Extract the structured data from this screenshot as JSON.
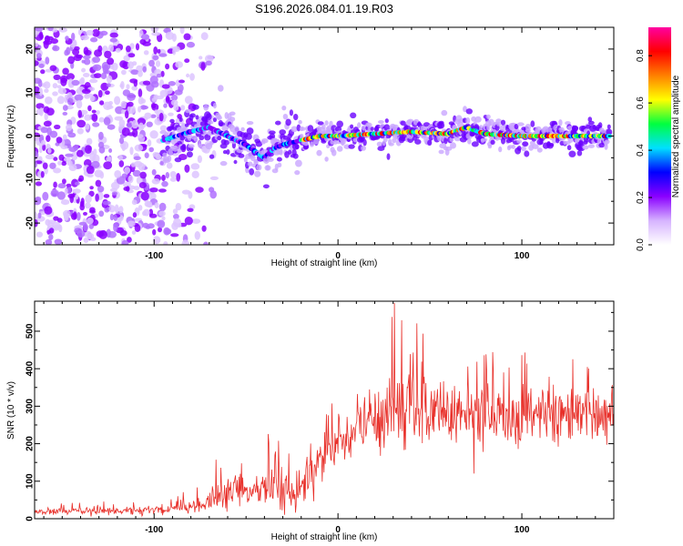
{
  "page": {
    "title": "S196.2026.084.01.19.R03"
  },
  "chart_data": [
    {
      "type": "heatmap",
      "name": "spectrogram",
      "xlabel": "Height of straight line (km)",
      "ylabel": "Frequency (Hz)",
      "xlim": [
        -165,
        150
      ],
      "ylim": [
        -25,
        25
      ],
      "xticks": [
        -100,
        0,
        100
      ],
      "xtick_labels": [
        "-100",
        "0",
        "100"
      ],
      "yticks": [
        -20,
        -10,
        0,
        10,
        20
      ],
      "ytick_labels": [
        "-20",
        "-10",
        "0",
        "10",
        "20"
      ],
      "colorbar": {
        "label": "Normalized spectral amplitude",
        "range": [
          0.0,
          0.92
        ],
        "ticks": [
          0.0,
          0.2,
          0.4,
          0.6,
          0.8
        ],
        "tick_labels": [
          "0.0",
          "0.2",
          "0.4",
          "0.6",
          "0.8"
        ],
        "colormap": [
          "#ffffff",
          "#d6b3ff",
          "#8a00ff",
          "#0000ff",
          "#00e0ff",
          "#00ff40",
          "#ffff00",
          "#ff8000",
          "#ff0000",
          "#ff00a0"
        ]
      },
      "ridge": {
        "x": [
          -95,
          -80,
          -70,
          -60,
          -50,
          -40,
          -35,
          -30,
          -20,
          -10,
          0,
          20,
          40,
          60,
          70,
          80,
          100,
          120,
          148
        ],
        "y": [
          -1,
          1,
          2,
          0,
          -2,
          -5,
          -3,
          -2,
          -1,
          0,
          0,
          0.5,
          1,
          0.5,
          2,
          0.5,
          0,
          0,
          0
        ]
      },
      "noise_region_x": [
        -165,
        -80
      ]
    },
    {
      "type": "line",
      "name": "snr",
      "xlabel": "Height of straight line (km)",
      "ylabel": "SNR (10 * v/v)",
      "xlim": [
        -165,
        150
      ],
      "ylim": [
        0,
        580
      ],
      "xticks": [
        -100,
        0,
        100
      ],
      "xtick_labels": [
        "-100",
        "0",
        "100"
      ],
      "yticks": [
        0,
        100,
        200,
        300,
        400,
        500
      ],
      "ytick_labels": [
        "0",
        "100",
        "200",
        "300",
        "400",
        "500"
      ],
      "color": "#e8302a",
      "envelope": {
        "x": [
          -165,
          -120,
          -90,
          -75,
          -65,
          -55,
          -45,
          -35,
          -25,
          -15,
          -5,
          5,
          15,
          25,
          35,
          50,
          70,
          90,
          110,
          130,
          150
        ],
        "mean": [
          20,
          20,
          25,
          35,
          55,
          85,
          75,
          100,
          70,
          120,
          170,
          210,
          250,
          285,
          300,
          290,
          280,
          270,
          265,
          270,
          275
        ],
        "spread": [
          8,
          9,
          12,
          18,
          35,
          50,
          40,
          60,
          50,
          55,
          60,
          70,
          90,
          100,
          100,
          90,
          90,
          80,
          70,
          70,
          70
        ]
      },
      "peak_max": 575
    }
  ]
}
